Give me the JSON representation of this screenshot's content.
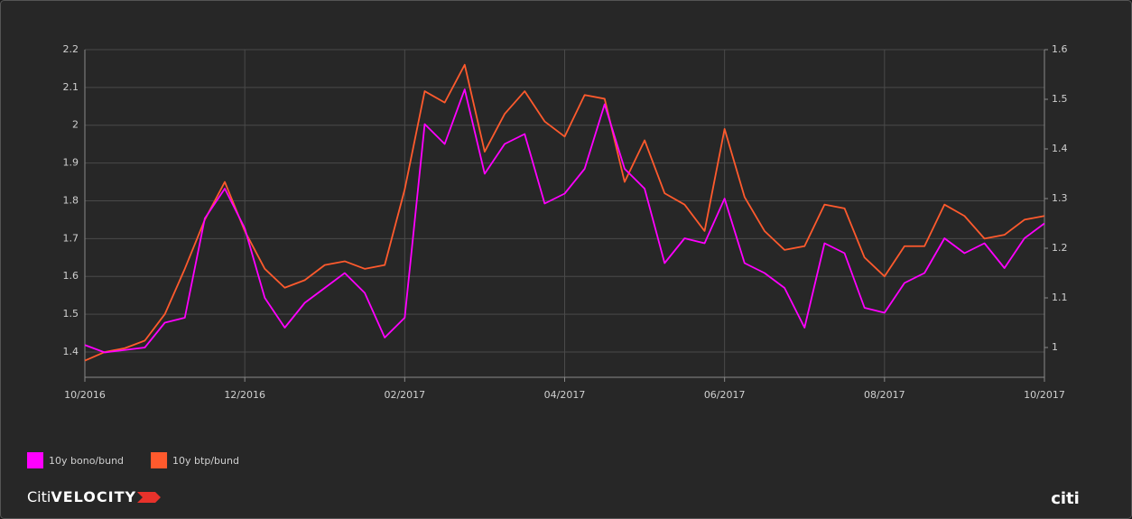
{
  "chart_data": {
    "type": "line",
    "categories": [
      "10/2016",
      null,
      null,
      null,
      null,
      null,
      null,
      null,
      "12/2016",
      null,
      null,
      null,
      null,
      null,
      null,
      null,
      "02/2017",
      null,
      null,
      null,
      null,
      null,
      null,
      null,
      "04/2017",
      null,
      null,
      null,
      null,
      null,
      null,
      null,
      "06/2017",
      null,
      null,
      null,
      null,
      null,
      null,
      null,
      "08/2017",
      null,
      null,
      null,
      null,
      null,
      null,
      null,
      "10/2017"
    ],
    "series": [
      {
        "name": "10y bono/bund",
        "color": "#ff00ff",
        "axis": "y2",
        "values": [
          1.005,
          0.99,
          0.995,
          1.0,
          1.05,
          1.06,
          1.26,
          1.32,
          1.24,
          1.1,
          1.04,
          1.09,
          1.12,
          1.15,
          1.11,
          1.02,
          1.06,
          1.45,
          1.41,
          1.52,
          1.35,
          1.41,
          1.43,
          1.29,
          1.31,
          1.36,
          1.49,
          1.36,
          1.32,
          1.17,
          1.22,
          1.21,
          1.3,
          1.17,
          1.15,
          1.12,
          1.04,
          1.21,
          1.19,
          1.08,
          1.07,
          1.13,
          1.15,
          1.22,
          1.19,
          1.21,
          1.16,
          1.22,
          1.25
        ]
      },
      {
        "name": "10y btp/bund",
        "color": "#ff5a2d",
        "values": [
          1.377,
          1.4,
          1.41,
          1.43,
          1.5,
          1.62,
          1.75,
          1.85,
          1.72,
          1.62,
          1.57,
          1.59,
          1.63,
          1.64,
          1.62,
          1.63,
          1.83,
          2.09,
          2.06,
          2.16,
          1.93,
          2.03,
          2.09,
          2.01,
          1.97,
          2.08,
          2.07,
          1.85,
          1.96,
          1.82,
          1.79,
          1.72,
          1.99,
          1.81,
          1.72,
          1.67,
          1.68,
          1.79,
          1.78,
          1.65,
          1.6,
          1.68,
          1.68,
          1.79,
          1.76,
          1.7,
          1.71,
          1.75,
          1.76
        ]
      }
    ],
    "ylim": [
      1.333,
      2.2
    ],
    "yticks": [
      1.4,
      1.5,
      1.6,
      1.7,
      1.8,
      1.9,
      2,
      2.1,
      2.2
    ],
    "y2lim": [
      0.94,
      1.6
    ],
    "y2ticks": [
      1,
      1.1,
      1.2,
      1.3,
      1.4,
      1.5,
      1.6
    ],
    "grid": true,
    "legend": "bottom-left",
    "brand": [
      "Citi",
      "VELOCITY"
    ],
    "logo": "citi"
  }
}
